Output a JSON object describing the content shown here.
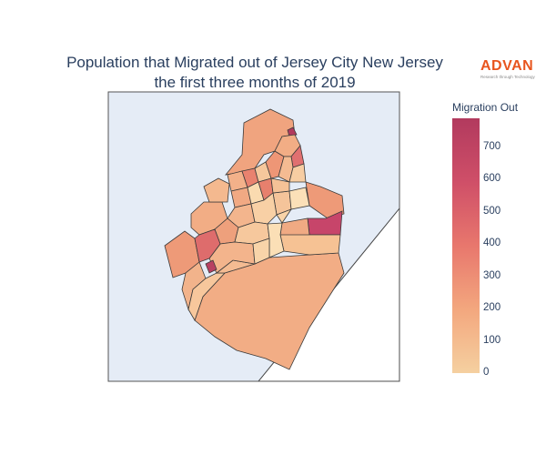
{
  "title": {
    "line1": "Population that Migrated out of Jersey City New Jersey",
    "line2": "the first three months of 2019"
  },
  "logo": {
    "name": "ADVAN",
    "tagline": "Research through Technology"
  },
  "colorbar": {
    "title": "Migration Out",
    "min": 0,
    "max": 800,
    "ticks": [
      "700",
      "600",
      "500",
      "400",
      "300",
      "200",
      "100",
      "0"
    ],
    "colorscale": [
      "#f5d0a0",
      "#f3a77e",
      "#e8776d",
      "#cf4f68",
      "#b23a5e"
    ]
  },
  "colors": {
    "map_background": "#e5ecf6",
    "land_outside": "#ffffff",
    "boundary": "#3a3a3a"
  }
}
